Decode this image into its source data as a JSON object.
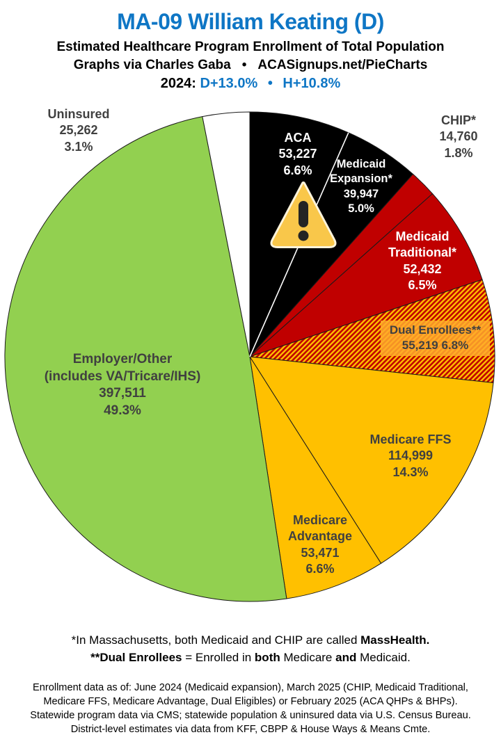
{
  "header": {
    "title": "MA-09 William Keating (D)",
    "subtitle": "Estimated Healthcare Program Enrollment of Total Population",
    "credit_left": "Graphs via Charles Gaba",
    "credit_bullet": "•",
    "credit_right": "ACASignups.net/PieCharts",
    "partisan": {
      "year_label": "2024:",
      "d_lean": "D+13.0%",
      "bullet": "•",
      "h_lean": "H+10.8%"
    }
  },
  "chart_data": {
    "type": "pie",
    "title": "Estimated Healthcare Program Enrollment of Total Population",
    "units": "people",
    "legend_position": "none",
    "start_angle_deg": -90,
    "direction": "clockwise",
    "overlay_icon": "warning-triangle",
    "colors": {
      "black": "#000000",
      "red": "#C00000",
      "gold": "#FFC000",
      "green": "#92D050",
      "white": "#FFFFFF",
      "label_dark": "#404040",
      "divider_white": "#FFFFFF"
    },
    "slices": [
      {
        "id": "aca",
        "name": "ACA",
        "enrollment": 53227,
        "pct": 6.6,
        "value_text": "53,227",
        "pct_text": "6.6%",
        "color": "#000000",
        "hatch": false,
        "label_placement": "inside",
        "label_lines": [
          "ACA",
          "53,227",
          "6.6%"
        ]
      },
      {
        "id": "medicaid-expansion",
        "name": "Medicaid Expansion*",
        "enrollment": 39947,
        "pct": 5.0,
        "value_text": "39,947",
        "pct_text": "5.0%",
        "color": "#000000",
        "hatch": false,
        "label_placement": "inside",
        "label_lines": [
          "Medicaid",
          "Expansion*",
          "39,947",
          "5.0%"
        ]
      },
      {
        "id": "chip",
        "name": "CHIP*",
        "enrollment": 14760,
        "pct": 1.8,
        "value_text": "14,760",
        "pct_text": "1.8%",
        "color": "#C00000",
        "hatch": false,
        "label_placement": "outside",
        "label_lines": [
          "CHIP*",
          "14,760",
          "1.8%"
        ]
      },
      {
        "id": "medicaid-traditional",
        "name": "Medicaid Traditional*",
        "enrollment": 52432,
        "pct": 6.5,
        "value_text": "52,432",
        "pct_text": "6.5%",
        "color": "#C00000",
        "hatch": false,
        "label_placement": "inside",
        "label_lines": [
          "Medicaid",
          "Traditional*",
          "52,432",
          "6.5%"
        ]
      },
      {
        "id": "dual-enrollees",
        "name": "Dual Enrollees**",
        "enrollment": 55219,
        "pct": 6.8,
        "value_text": "55,219",
        "pct_text": "6.8%",
        "color": "#C00000",
        "hatch": true,
        "hatch_color": "#FFC000",
        "label_placement": "inside-box",
        "label_lines": [
          "Dual Enrollees**",
          "55,219 6.8%"
        ]
      },
      {
        "id": "medicare-ffs",
        "name": "Medicare FFS",
        "enrollment": 114999,
        "pct": 14.3,
        "value_text": "114,999",
        "pct_text": "14.3%",
        "color": "#FFC000",
        "hatch": false,
        "label_placement": "inside",
        "label_lines": [
          "Medicare FFS",
          "114,999",
          "14.3%"
        ]
      },
      {
        "id": "medicare-advantage",
        "name": "Medicare Advantage",
        "enrollment": 53471,
        "pct": 6.6,
        "value_text": "53,471",
        "pct_text": "6.6%",
        "color": "#FFC000",
        "hatch": false,
        "label_placement": "inside",
        "label_lines": [
          "Medicare",
          "Advantage",
          "53,471",
          "6.6%"
        ]
      },
      {
        "id": "employer-other",
        "name": "Employer/Other (includes VA/Tricare/IHS)",
        "enrollment": 397511,
        "pct": 49.3,
        "value_text": "397,511",
        "pct_text": "49.3%",
        "color": "#92D050",
        "hatch": false,
        "label_placement": "inside",
        "label_lines": [
          "Employer/Other",
          "(includes VA/Tricare/IHS)",
          "397,511",
          "49.3%"
        ]
      },
      {
        "id": "uninsured",
        "name": "Uninsured",
        "enrollment": 25262,
        "pct": 3.1,
        "value_text": "25,262",
        "pct_text": "3.1%",
        "color": "#FFFFFF",
        "hatch": false,
        "label_placement": "outside",
        "label_lines": [
          "Uninsured",
          "25,262",
          "3.1%"
        ]
      }
    ]
  },
  "footnotes": {
    "line1": {
      "segments": [
        {
          "text": "*In Massachusetts, both Medicaid and CHIP are called "
        },
        {
          "text": "MassHealth."
        }
      ]
    },
    "line2": {
      "segments": [
        {
          "text": "**Dual Enrollees"
        },
        {
          "text": " = Enrolled in "
        },
        {
          "text": "both"
        },
        {
          "text": " Medicare "
        },
        {
          "text": "and"
        },
        {
          "text": " Medicaid."
        }
      ]
    }
  },
  "source_lines": [
    "Enrollment data as of: June 2024 (Medicaid expansion), March 2025 (CHIP, Medicaid Traditional,",
    "Medicare FFS, Medicare Advantage, Dual Eligibles) or February 2025 (ACA QHPs & BHPs).",
    "Statewide program data via CMS; statewide population & uninsured data via U.S. Census Bureau.",
    "District-level estimates via data from KFF, CBPP & House Ways & Means Cmte."
  ]
}
